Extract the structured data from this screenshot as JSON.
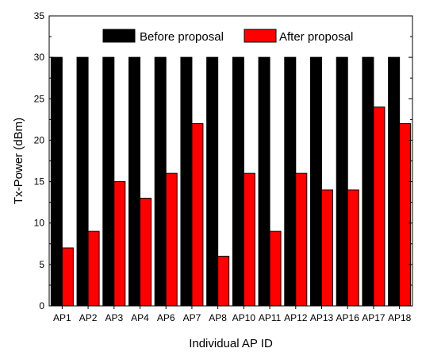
{
  "chart_data": {
    "type": "bar",
    "title": "",
    "xlabel": "Individual AP ID",
    "ylabel": "Tx-Power (dBm)",
    "ylim": [
      0,
      35
    ],
    "yticks": [
      0,
      5,
      10,
      15,
      20,
      25,
      30,
      35
    ],
    "categories": [
      "AP1",
      "AP2",
      "AP3",
      "AP4",
      "AP6",
      "AP7",
      "AP8",
      "AP10",
      "AP11",
      "AP12",
      "AP13",
      "AP16",
      "AP17",
      "AP18"
    ],
    "series": [
      {
        "name": "Before proposal",
        "color": "#000000",
        "values": [
          30,
          30,
          30,
          30,
          30,
          30,
          30,
          30,
          30,
          30,
          30,
          30,
          30,
          30
        ]
      },
      {
        "name": "After proposal",
        "color": "#ff0000",
        "values": [
          7,
          9,
          15,
          13,
          16,
          22,
          6,
          16,
          9,
          16,
          14,
          14,
          24,
          22
        ]
      }
    ],
    "legend": "top-center",
    "grid": false
  }
}
